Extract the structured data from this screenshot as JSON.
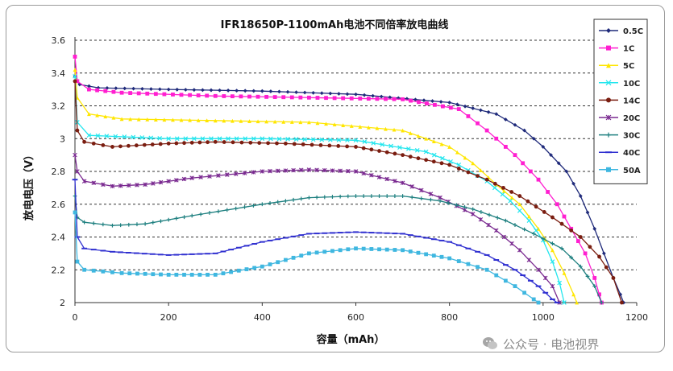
{
  "chart_data": {
    "type": "line",
    "title": "IFR18650P-1100mAh电池不同倍率放电曲线",
    "xlabel": "容量（mAh）",
    "ylabel": "放电电压（V）",
    "xlim": [
      0,
      1200
    ],
    "ylim": [
      2,
      3.6
    ],
    "x_ticks": [
      "0",
      "200",
      "400",
      "600",
      "800",
      "1000",
      "1200"
    ],
    "y_ticks": [
      "2",
      "2.2",
      "2.4",
      "2.6",
      "2.8",
      "3",
      "3.2",
      "3.4",
      "3.6"
    ],
    "grid": "horizontal dashed",
    "legend_position": "right",
    "series": [
      {
        "name": "0.5C",
        "color": "#1f2a7a",
        "marker": "diamond",
        "points": [
          [
            0,
            3.38
          ],
          [
            10,
            3.33
          ],
          [
            50,
            3.31
          ],
          [
            200,
            3.3
          ],
          [
            400,
            3.29
          ],
          [
            600,
            3.27
          ],
          [
            800,
            3.22
          ],
          [
            900,
            3.15
          ],
          [
            960,
            3.05
          ],
          [
            1000,
            2.95
          ],
          [
            1050,
            2.8
          ],
          [
            1080,
            2.65
          ],
          [
            1110,
            2.45
          ],
          [
            1130,
            2.3
          ],
          [
            1150,
            2.15
          ],
          [
            1165,
            2.05
          ],
          [
            1172,
            2.0
          ]
        ]
      },
      {
        "name": "1C",
        "color": "#ff1fd0",
        "marker": "square",
        "points": [
          [
            0,
            3.5
          ],
          [
            5,
            3.35
          ],
          [
            30,
            3.3
          ],
          [
            100,
            3.28
          ],
          [
            300,
            3.26
          ],
          [
            500,
            3.25
          ],
          [
            700,
            3.24
          ],
          [
            820,
            3.18
          ],
          [
            880,
            3.05
          ],
          [
            940,
            2.9
          ],
          [
            990,
            2.75
          ],
          [
            1030,
            2.6
          ],
          [
            1060,
            2.45
          ],
          [
            1090,
            2.3
          ],
          [
            1110,
            2.15
          ],
          [
            1120,
            2.05
          ],
          [
            1125,
            2.0
          ]
        ]
      },
      {
        "name": "5C",
        "color": "#ffe600",
        "marker": "triangle",
        "points": [
          [
            0,
            3.42
          ],
          [
            5,
            3.25
          ],
          [
            30,
            3.15
          ],
          [
            100,
            3.12
          ],
          [
            300,
            3.11
          ],
          [
            500,
            3.1
          ],
          [
            700,
            3.05
          ],
          [
            800,
            2.95
          ],
          [
            850,
            2.85
          ],
          [
            900,
            2.72
          ],
          [
            950,
            2.6
          ],
          [
            990,
            2.45
          ],
          [
            1020,
            2.32
          ],
          [
            1045,
            2.18
          ],
          [
            1065,
            2.05
          ],
          [
            1072,
            2.0
          ]
        ]
      },
      {
        "name": "10C",
        "color": "#23e6ee",
        "marker": "cross",
        "points": [
          [
            0,
            3.38
          ],
          [
            5,
            3.1
          ],
          [
            30,
            3.02
          ],
          [
            200,
            3.0
          ],
          [
            400,
            3.0
          ],
          [
            600,
            2.99
          ],
          [
            750,
            2.92
          ],
          [
            820,
            2.84
          ],
          [
            880,
            2.74
          ],
          [
            930,
            2.62
          ],
          [
            970,
            2.5
          ],
          [
            1000,
            2.38
          ],
          [
            1020,
            2.25
          ],
          [
            1035,
            2.12
          ],
          [
            1045,
            2.0
          ]
        ]
      },
      {
        "name": "14C",
        "color": "#7a1d10",
        "marker": "circle",
        "points": [
          [
            0,
            3.35
          ],
          [
            5,
            3.05
          ],
          [
            20,
            2.98
          ],
          [
            80,
            2.95
          ],
          [
            200,
            2.97
          ],
          [
            300,
            2.98
          ],
          [
            450,
            2.97
          ],
          [
            600,
            2.95
          ],
          [
            700,
            2.9
          ],
          [
            800,
            2.84
          ],
          [
            880,
            2.75
          ],
          [
            950,
            2.65
          ],
          [
            1020,
            2.52
          ],
          [
            1080,
            2.4
          ],
          [
            1120,
            2.28
          ],
          [
            1150,
            2.15
          ],
          [
            1168,
            2.0
          ]
        ]
      },
      {
        "name": "20C",
        "color": "#7a2a90",
        "marker": "star",
        "points": [
          [
            0,
            2.9
          ],
          [
            5,
            2.8
          ],
          [
            20,
            2.74
          ],
          [
            80,
            2.71
          ],
          [
            150,
            2.72
          ],
          [
            250,
            2.76
          ],
          [
            400,
            2.8
          ],
          [
            500,
            2.81
          ],
          [
            600,
            2.8
          ],
          [
            700,
            2.73
          ],
          [
            780,
            2.64
          ],
          [
            850,
            2.54
          ],
          [
            900,
            2.44
          ],
          [
            950,
            2.32
          ],
          [
            990,
            2.2
          ],
          [
            1020,
            2.1
          ],
          [
            1035,
            2.0
          ]
        ]
      },
      {
        "name": "30C",
        "color": "#1f8080",
        "marker": "plus",
        "points": [
          [
            0,
            2.65
          ],
          [
            5,
            2.52
          ],
          [
            20,
            2.49
          ],
          [
            80,
            2.47
          ],
          [
            150,
            2.48
          ],
          [
            250,
            2.53
          ],
          [
            400,
            2.6
          ],
          [
            500,
            2.64
          ],
          [
            600,
            2.65
          ],
          [
            700,
            2.65
          ],
          [
            780,
            2.62
          ],
          [
            850,
            2.57
          ],
          [
            920,
            2.5
          ],
          [
            980,
            2.42
          ],
          [
            1040,
            2.33
          ],
          [
            1080,
            2.22
          ],
          [
            1110,
            2.1
          ],
          [
            1125,
            2.0
          ]
        ]
      },
      {
        "name": "40C",
        "color": "#3030d0",
        "marker": "dash",
        "points": [
          [
            0,
            2.75
          ],
          [
            5,
            2.4
          ],
          [
            20,
            2.33
          ],
          [
            80,
            2.31
          ],
          [
            200,
            2.29
          ],
          [
            300,
            2.3
          ],
          [
            400,
            2.37
          ],
          [
            500,
            2.42
          ],
          [
            600,
            2.43
          ],
          [
            700,
            2.42
          ],
          [
            800,
            2.37
          ],
          [
            880,
            2.29
          ],
          [
            940,
            2.2
          ],
          [
            990,
            2.1
          ],
          [
            1020,
            2.02
          ],
          [
            1030,
            2.0
          ]
        ]
      },
      {
        "name": "50A",
        "color": "#3fb7e0",
        "marker": "square",
        "points": [
          [
            0,
            2.55
          ],
          [
            5,
            2.25
          ],
          [
            20,
            2.2
          ],
          [
            100,
            2.18
          ],
          [
            200,
            2.17
          ],
          [
            300,
            2.17
          ],
          [
            400,
            2.22
          ],
          [
            500,
            2.3
          ],
          [
            600,
            2.33
          ],
          [
            700,
            2.32
          ],
          [
            800,
            2.27
          ],
          [
            880,
            2.2
          ],
          [
            940,
            2.1
          ],
          [
            980,
            2.02
          ],
          [
            990,
            2.0
          ]
        ]
      }
    ]
  },
  "watermark": {
    "text": "公众号 · 电池视界",
    "logo_icon": "wechat-icon"
  }
}
